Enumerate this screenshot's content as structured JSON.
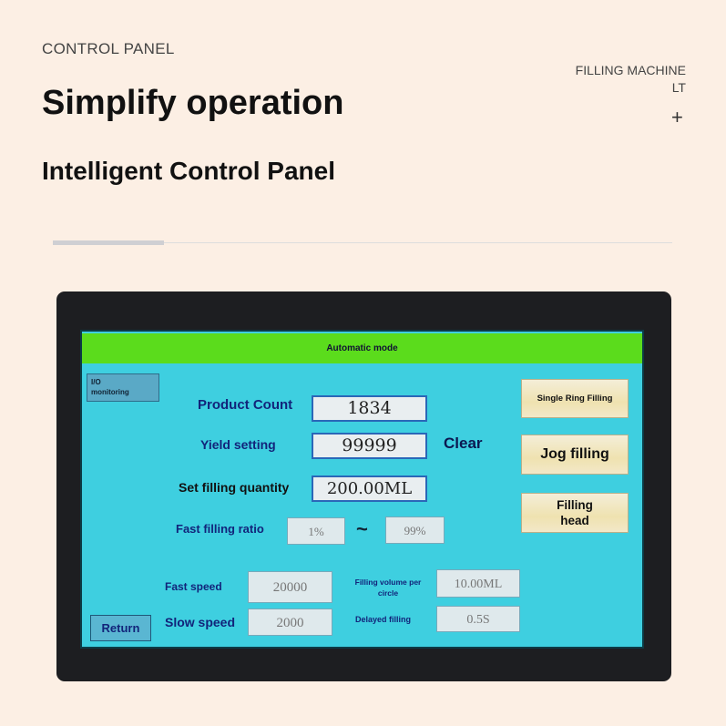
{
  "header": {
    "section": "CONTROL PANEL",
    "title": "Simplify operation",
    "subtitle": "Intelligent Control Panel",
    "side_line1": "FILLING MACHINE",
    "side_line2": "LT",
    "plus": "+"
  },
  "hmi": {
    "mode": "Automatic mode",
    "io_monitoring": [
      "I/O",
      "monitoring"
    ],
    "product_count_label": "Product Count",
    "product_count": "1834",
    "yield_label": "Yield setting",
    "yield": "99999",
    "clear": "Clear",
    "fill_qty_label": "Set filling quantity",
    "fill_qty": "200.00ML",
    "ratio_label": "Fast filling ratio",
    "ratio_min": "1%",
    "ratio_sep": "~",
    "ratio_max": "99%",
    "fast_speed_label": "Fast speed",
    "fast_speed": "20000",
    "slow_speed_label": "Slow speed",
    "slow_speed": "2000",
    "vol_circle_label": "Filling volume per circle",
    "vol_circle": "10.00ML",
    "delay_label": "Delayed filling",
    "delay": "0.5S",
    "return": "Return",
    "single_ring": "Single Ring Filling",
    "jog": "Jog filling",
    "filling_head": [
      "Filling",
      "head"
    ]
  },
  "colors": {
    "screen": "#3ecfe0",
    "mode_bar": "#5bdc1c",
    "label": "#12247a"
  }
}
